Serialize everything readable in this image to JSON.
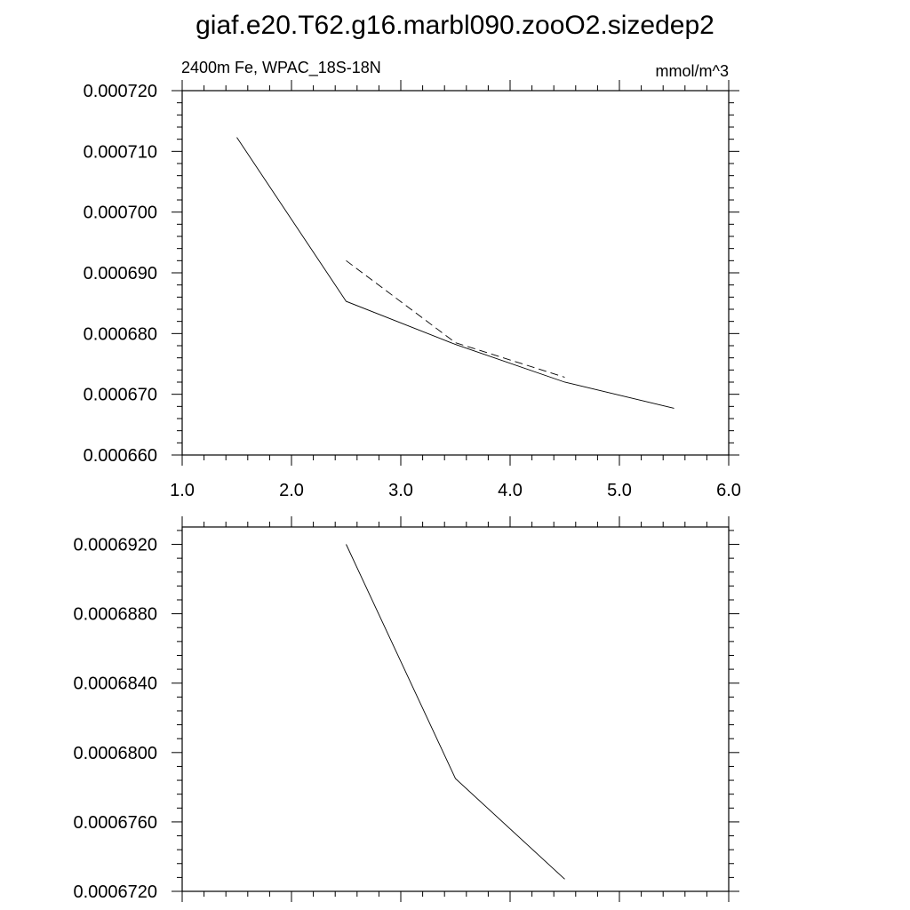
{
  "title": "giaf.e20.T62.g16.marbl090.zooO2.sizedep2",
  "colors": {
    "line": "#000000",
    "background": "#ffffff"
  },
  "chart_data": [
    {
      "type": "line",
      "left_label": "2400m Fe, WPAC_18S-18N",
      "right_label": "mmol/m^3",
      "xlim": [
        1.0,
        6.0
      ],
      "ylim": [
        0.00066,
        0.00072
      ],
      "x_ticks": [
        1.0,
        2.0,
        3.0,
        4.0,
        5.0,
        6.0
      ],
      "x_tick_labels": [
        "1.0",
        "2.0",
        "3.0",
        "4.0",
        "5.0",
        "6.0"
      ],
      "y_ticks": [
        0.00066,
        0.00067,
        0.00068,
        0.00069,
        0.0007,
        0.00071,
        0.00072
      ],
      "y_tick_labels": [
        "0.000660",
        "0.000670",
        "0.000680",
        "0.000690",
        "0.000700",
        "0.000710",
        "0.000720"
      ],
      "grid": false,
      "series": [
        {
          "style": "solid",
          "x": [
            1.5,
            2.5,
            3.5,
            4.5,
            5.5
          ],
          "y": [
            0.0007123,
            0.0006853,
            0.0006782,
            0.000672,
            0.0006677
          ]
        },
        {
          "style": "dashed",
          "x": [
            2.5,
            3.5,
            4.5
          ],
          "y": [
            0.000692,
            0.0006785,
            0.0006728
          ]
        }
      ]
    },
    {
      "type": "line",
      "xlim": [
        1.0,
        6.0
      ],
      "ylim": [
        0.000672,
        0.000693
      ],
      "x_ticks": [
        1.0,
        2.0,
        3.0,
        4.0,
        5.0,
        6.0
      ],
      "y_ticks": [
        0.000672,
        0.000676,
        0.00068,
        0.000684,
        0.000688,
        0.000692
      ],
      "y_tick_labels": [
        "0.0006720",
        "0.0006760",
        "0.0006800",
        "0.0006840",
        "0.0006880",
        "0.0006920"
      ],
      "grid": false,
      "series": [
        {
          "style": "solid",
          "x": [
            2.5,
            3.5,
            4.5
          ],
          "y": [
            0.000692,
            0.0006785,
            0.0006727
          ]
        }
      ]
    }
  ]
}
